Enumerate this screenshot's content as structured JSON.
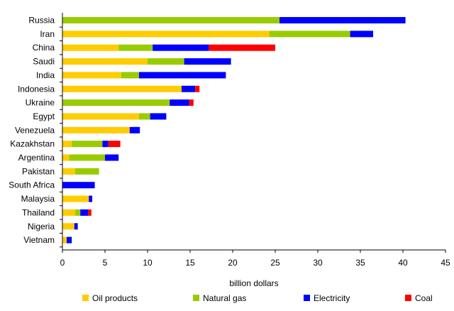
{
  "chart_data": {
    "type": "bar",
    "orientation": "horizontal",
    "stacked": true,
    "title": "",
    "xlabel": "billion dollars",
    "ylabel": "",
    "xlim": [
      0,
      45
    ],
    "xticks": [
      0,
      5,
      10,
      15,
      20,
      25,
      30,
      35,
      40,
      45
    ],
    "grid": false,
    "legend_position": "bottom",
    "categories": [
      "Russia",
      "Iran",
      "China",
      "Saudi",
      "India",
      "Indonesia",
      "Ukraine",
      "Egypt",
      "Venezuela",
      "Kazakhstan",
      "Argentina",
      "Pakistan",
      "South Africa",
      "Malaysia",
      "Thailand",
      "Nigeria",
      "Vietnam"
    ],
    "series": [
      {
        "name": "Oil products",
        "color": "#ffcc00",
        "values": [
          0,
          24.3,
          6.6,
          10.0,
          6.9,
          14.0,
          0,
          9.0,
          7.9,
          1.1,
          0.8,
          1.5,
          0,
          3.1,
          1.5,
          1.4,
          0.5
        ]
      },
      {
        "name": "Natural gas",
        "color": "#99cc00",
        "values": [
          25.5,
          9.5,
          4.0,
          4.3,
          2.1,
          0,
          12.6,
          1.3,
          0,
          3.6,
          4.2,
          2.8,
          0,
          0,
          0.6,
          0,
          0
        ]
      },
      {
        "name": "Electricity",
        "color": "#0000ff",
        "values": [
          14.8,
          2.7,
          6.6,
          5.5,
          10.2,
          1.6,
          2.3,
          1.9,
          1.2,
          0.7,
          1.6,
          0,
          3.8,
          0.4,
          0.9,
          0.4,
          0.6
        ]
      },
      {
        "name": "Coal",
        "color": "#ff0000",
        "values": [
          0,
          0,
          7.8,
          0,
          0,
          0.5,
          0.5,
          0,
          0,
          1.4,
          0,
          0,
          0,
          0,
          0.4,
          0,
          0
        ]
      }
    ]
  }
}
